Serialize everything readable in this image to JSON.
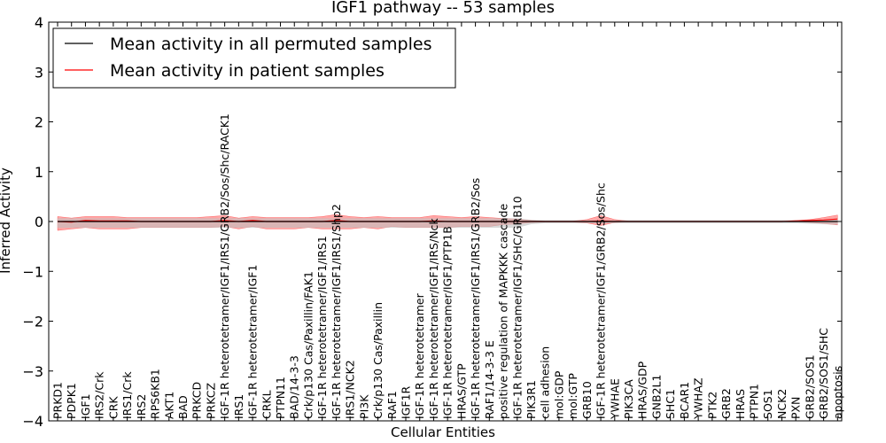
{
  "chart_data": {
    "type": "line",
    "title": "IGF1 pathway -- 53 samples",
    "xlabel": "Cellular Entities",
    "ylabel": "Inferred Activity",
    "ylim": [
      -4,
      4
    ],
    "yticks": [
      -4,
      -3,
      -2,
      -1,
      0,
      1,
      2,
      3,
      4
    ],
    "ytick_labels": [
      "−4",
      "−3",
      "−2",
      "−1",
      "0",
      "1",
      "2",
      "3",
      "4"
    ],
    "legend_position": "top-left",
    "categories": [
      "PRKD1",
      "PDPK1",
      "IGF1",
      "IRS2/Crk",
      "CRK",
      "IRS1/Crk",
      "IRS2",
      "RPS6KB1",
      "AKT1",
      "BAD",
      "PRKCD",
      "PRKCZ",
      "IGF-1R heterotetramer/IGF1/IRS1/GRB2/Sos/Shc/RACK1",
      "IRS1",
      "IGF-1R heterotetramer/IGF1",
      "CRKL",
      "PTPN11",
      "BAD/14-3-3",
      "Crk/p130 Cas/Paxillin/FAK1",
      "IGF-1R heterotetramer/IGF1/IRS1",
      "IGF-1R heterotetramer/IGF1/IRS1/Shp2",
      "IRS1/NCK2",
      "PI3K",
      "Crk/p130 Cas/Paxillin",
      "RAF1",
      "IGF1R",
      "IGF-1R heterotetramer",
      "IGF-1R heterotetramer/IGF1/IRS/Nck",
      "IGF-1R heterotetramer/IGF1/PTP1B",
      "HRAS/GTP",
      "IGF-1R heterotetramer/IGF1/IRS1/GRB2/Sos",
      "RAF1/14-3-3 E",
      "positive regulation of MAPKKK cascade",
      "IGF-1R heterotetramer/IGF1/SHC/GRB10",
      "PIK3R1",
      "cell adhesion",
      "mol:GDP",
      "mol:GTP",
      "GRB10",
      "IGF-1R heterotetramer/IGF1/GRB2/Sos/Shc",
      "YWHAE",
      "PIK3CA",
      "HRAS/GDP",
      "GNB2L1",
      "SHC1",
      "BCAR1",
      "YWHAZ",
      "PTK2",
      "GRB2",
      "HRAS",
      "PTPN1",
      "SOS1",
      "NCK2",
      "PXN",
      "GRB2/SOS1",
      "GRB2/SOS1/SHC",
      "apoptosis"
    ],
    "series": [
      {
        "name": "Mean activity in all permuted samples",
        "color": "#000000",
        "values": [
          0.0,
          0.0,
          0.0,
          0.0,
          0.0,
          0.0,
          0.0,
          0.0,
          0.0,
          0.0,
          0.0,
          0.0,
          0.0,
          0.0,
          0.0,
          0.0,
          0.0,
          0.0,
          0.0,
          0.0,
          0.0,
          0.0,
          0.0,
          0.0,
          0.0,
          0.0,
          0.0,
          0.0,
          0.0,
          0.0,
          0.0,
          0.0,
          0.0,
          0.0,
          0.0,
          0.0,
          0.0,
          0.0,
          0.0,
          0.0,
          0.0,
          0.0,
          0.0,
          0.0,
          0.0,
          0.0,
          0.0,
          0.0,
          0.0,
          0.0,
          0.0,
          0.0,
          0.0,
          0.0,
          0.0,
          0.0,
          0.0
        ],
        "band_lower": [
          -0.12,
          -0.12,
          -0.12,
          -0.12,
          -0.12,
          -0.12,
          -0.12,
          -0.12,
          -0.12,
          -0.12,
          -0.12,
          -0.12,
          -0.12,
          -0.12,
          -0.12,
          -0.12,
          -0.12,
          -0.12,
          -0.12,
          -0.12,
          -0.12,
          -0.12,
          -0.12,
          -0.12,
          -0.12,
          -0.12,
          -0.12,
          -0.12,
          -0.12,
          -0.12,
          -0.12,
          -0.12,
          -0.12,
          -0.12,
          -0.05,
          -0.03,
          -0.03,
          -0.03,
          -0.03,
          -0.03,
          -0.03,
          -0.03,
          -0.03,
          -0.03,
          -0.03,
          -0.03,
          -0.03,
          -0.03,
          -0.03,
          -0.03,
          -0.03,
          -0.03,
          -0.03,
          -0.03,
          -0.04,
          -0.05,
          -0.06
        ],
        "band_upper": [
          0.06,
          0.06,
          0.06,
          0.06,
          0.06,
          0.06,
          0.06,
          0.06,
          0.06,
          0.06,
          0.06,
          0.06,
          0.06,
          0.06,
          0.06,
          0.06,
          0.06,
          0.06,
          0.06,
          0.06,
          0.06,
          0.06,
          0.06,
          0.06,
          0.06,
          0.06,
          0.06,
          0.06,
          0.06,
          0.06,
          0.06,
          0.06,
          0.06,
          0.06,
          0.03,
          0.02,
          0.02,
          0.02,
          0.02,
          0.02,
          0.02,
          0.02,
          0.02,
          0.02,
          0.02,
          0.02,
          0.02,
          0.02,
          0.02,
          0.02,
          0.02,
          0.02,
          0.02,
          0.02,
          0.03,
          0.04,
          0.06
        ]
      },
      {
        "name": "Mean activity in patient samples",
        "color": "#ff0000",
        "values": [
          0.0,
          -0.01,
          0.02,
          0.01,
          0.01,
          0.01,
          0.0,
          0.0,
          0.0,
          0.0,
          0.0,
          0.0,
          0.02,
          0.0,
          0.02,
          0.0,
          0.0,
          0.0,
          0.0,
          0.0,
          0.02,
          0.0,
          0.0,
          0.0,
          0.0,
          0.0,
          0.0,
          0.01,
          0.0,
          0.0,
          0.0,
          0.0,
          0.0,
          0.0,
          0.0,
          0.0,
          0.0,
          0.0,
          0.0,
          0.01,
          0.0,
          0.0,
          0.0,
          0.0,
          0.0,
          0.0,
          0.0,
          0.0,
          0.0,
          0.0,
          0.0,
          0.0,
          0.0,
          0.01,
          0.02,
          0.03,
          0.05
        ],
        "band_lower": [
          -0.18,
          -0.15,
          -0.12,
          -0.15,
          -0.15,
          -0.15,
          -0.12,
          -0.12,
          -0.12,
          -0.12,
          -0.12,
          -0.12,
          -0.1,
          -0.15,
          -0.1,
          -0.15,
          -0.15,
          -0.15,
          -0.12,
          -0.15,
          -0.15,
          -0.15,
          -0.12,
          -0.15,
          -0.1,
          -0.12,
          -0.12,
          -0.12,
          -0.12,
          -0.1,
          -0.1,
          -0.1,
          -0.06,
          -0.05,
          -0.02,
          -0.01,
          -0.01,
          -0.01,
          -0.03,
          -0.08,
          -0.02,
          0.0,
          0.0,
          0.0,
          0.0,
          0.0,
          0.0,
          0.0,
          0.0,
          0.0,
          0.0,
          0.0,
          0.0,
          0.0,
          -0.02,
          -0.04,
          -0.07
        ],
        "band_upper": [
          0.1,
          0.07,
          0.1,
          0.1,
          0.1,
          0.08,
          0.08,
          0.08,
          0.08,
          0.08,
          0.08,
          0.1,
          0.12,
          0.07,
          0.1,
          0.08,
          0.08,
          0.08,
          0.08,
          0.1,
          0.14,
          0.1,
          0.08,
          0.1,
          0.08,
          0.08,
          0.08,
          0.12,
          0.1,
          0.08,
          0.1,
          0.08,
          0.06,
          0.05,
          0.02,
          0.01,
          0.01,
          0.01,
          0.04,
          0.12,
          0.04,
          0.01,
          0.01,
          0.01,
          0.01,
          0.01,
          0.01,
          0.01,
          0.01,
          0.01,
          0.01,
          0.01,
          0.01,
          0.02,
          0.04,
          0.08,
          0.13
        ]
      }
    ],
    "band_colors": {
      "permuted": "#bfbfbf",
      "patient": "#ff0000"
    }
  }
}
